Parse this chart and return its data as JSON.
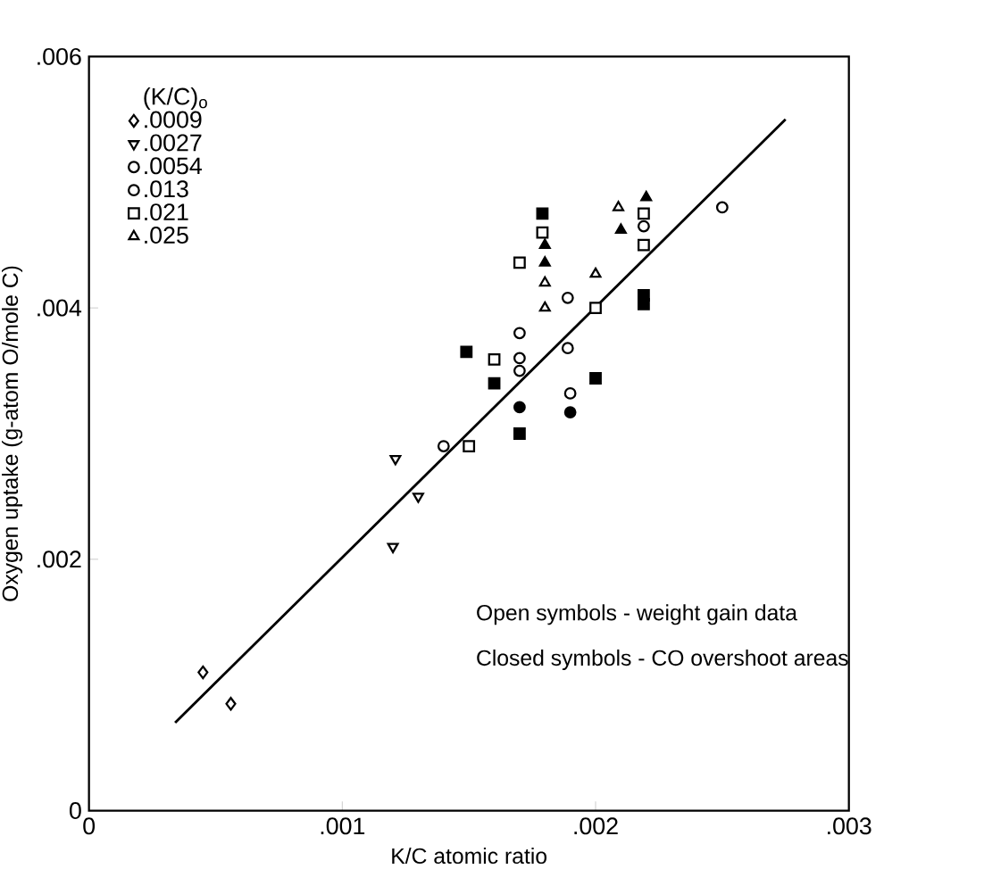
{
  "chart_data": {
    "type": "scatter",
    "xlabel": "K/C atomic ratio",
    "ylabel": "Oxygen uptake (g-atom O/mole C)",
    "legend_title": "(K/C)$_{o}$",
    "legend": "top left",
    "xlim": [
      0,
      0.003
    ],
    "ylim": [
      0,
      0.006
    ],
    "xticks": [
      {
        "value": 0,
        "label": "0"
      },
      {
        "value": 0.001,
        "label": ".001"
      },
      {
        "value": 0.002,
        "label": ".002"
      },
      {
        "value": 0.003,
        "label": ".003"
      }
    ],
    "yticks": [
      {
        "value": 0,
        "label": "0"
      },
      {
        "value": 0.002,
        "label": ".002"
      },
      {
        "value": 0.004,
        "label": ".004"
      },
      {
        "value": 0.006,
        "label": ".006"
      }
    ],
    "annotations": [
      "Open symbols - weight gain data",
      "Closed symbols - CO overshoot areas"
    ],
    "series": [
      {
        "name": ".0009",
        "color": "#ffffff",
        "marker": "diamond",
        "x": [
          0.00045,
          0.00056
        ],
        "values": [
          0.0011,
          0.00085
        ]
      },
      {
        "name": ".0027",
        "color": "#ffffff",
        "marker": "triangle-down",
        "x": [
          0.00121,
          0.0013,
          0.0012
        ],
        "values": [
          0.0028,
          0.0025,
          0.0021
        ]
      },
      {
        "name": ".0054",
        "color": "#ffffff",
        "marker": "circle",
        "x": [
          0.0017,
          0.0017,
          0.0017,
          0.0014
        ],
        "values": [
          0.0038,
          0.0036,
          0.0035,
          0.0029
        ]
      },
      {
        "name": ".013",
        "color": "#ffffff",
        "marker": "circle",
        "x": [
          0.0025,
          0.00189,
          0.00189,
          0.0019,
          0.00219
        ],
        "values": [
          0.0048,
          0.00408,
          0.00368,
          0.00332,
          0.00465
        ]
      },
      {
        "name": ".021",
        "color": "#ffffff",
        "marker": "square",
        "x": [
          0.00179,
          0.0017,
          0.00219,
          0.00219,
          0.002,
          0.0016,
          0.0015
        ],
        "values": [
          0.0046,
          0.00436,
          0.0045,
          0.00475,
          0.004,
          0.00359,
          0.0029
        ]
      },
      {
        "name": ".025",
        "color": "#ffffff",
        "marker": "triangle",
        "x": [
          0.00209,
          0.002,
          0.0018,
          0.0018
        ],
        "values": [
          0.0048,
          0.00427,
          0.0042,
          0.004
        ]
      },
      {
        "color": "#000000",
        "marker": "circle",
        "x": [
          0.0017,
          0.0019
        ],
        "values": [
          0.00321,
          0.00317
        ]
      },
      {
        "color": "#000000",
        "marker": "square",
        "x": [
          0.00179,
          0.00219,
          0.00219,
          0.00149,
          0.0016,
          0.002,
          0.0017
        ],
        "values": [
          0.00475,
          0.0041,
          0.00403,
          0.00365,
          0.0034,
          0.00344,
          0.003
        ]
      },
      {
        "color": "#000000",
        "marker": "triangle",
        "x": [
          0.0018,
          0.0018,
          0.0021,
          0.0022
        ],
        "values": [
          0.0045,
          0.00436,
          0.00462,
          0.00488
        ]
      },
      {
        "type": "line",
        "color": "#000000",
        "marker": "none",
        "x": [
          0.00034,
          0.00275
        ],
        "values": [
          0.0007,
          0.0055
        ]
      }
    ]
  }
}
